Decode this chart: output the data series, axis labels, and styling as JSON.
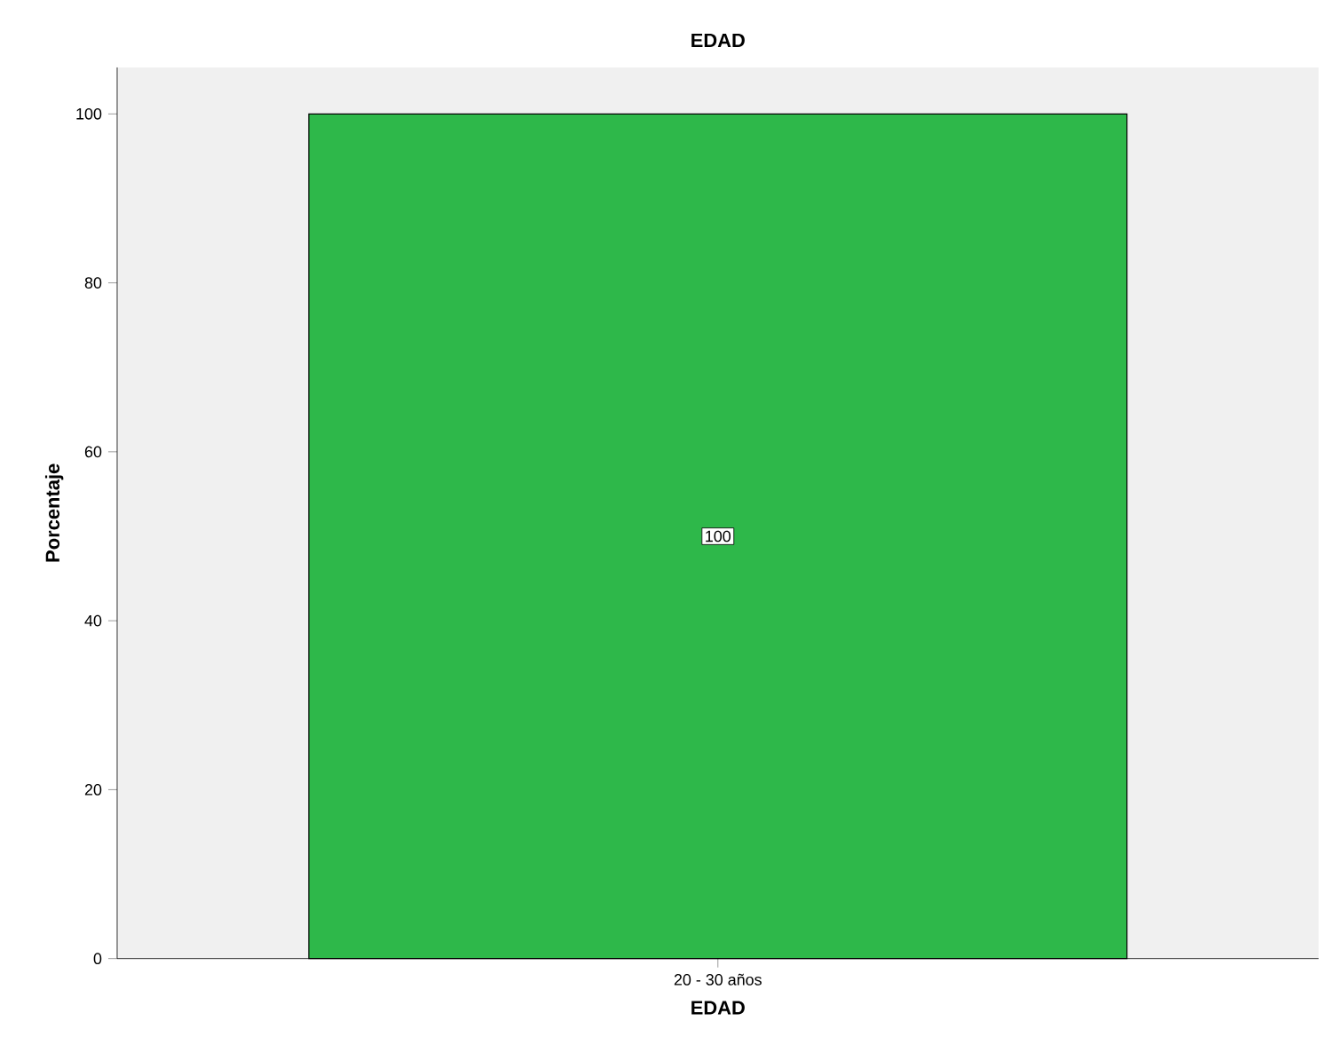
{
  "chart_data": {
    "type": "bar",
    "title": "EDAD",
    "xlabel": "EDAD",
    "ylabel": "Porcentaje",
    "categories": [
      "20 - 30 años"
    ],
    "values": [
      100
    ],
    "color": "#2eb84a",
    "ylim": [
      0,
      105.5
    ],
    "yticks": [
      0,
      20,
      40,
      60,
      80,
      100
    ],
    "data_labels": true
  }
}
